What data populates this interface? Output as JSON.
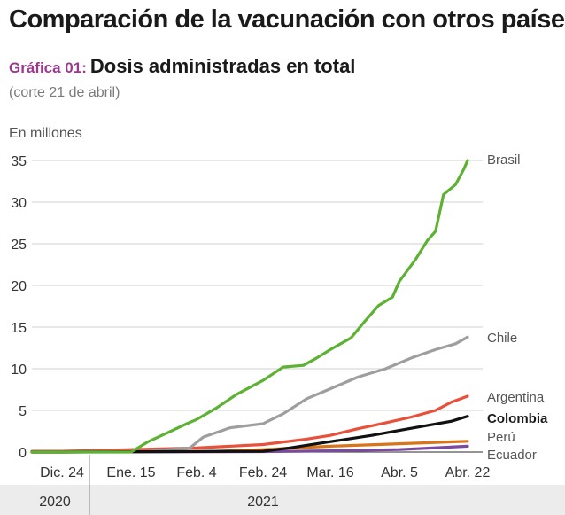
{
  "header": {
    "title": "Comparación de la vacunación con otros países",
    "subtitle_tag": "Gráfica 01:",
    "subtitle": "Dosis administradas en total",
    "note": "(corte 21 de abril)"
  },
  "colors": {
    "Brasil": "#5db233",
    "Chile": "#9e9e9e",
    "Argentina": "#e8503a",
    "Colombia": "#111111",
    "Perú": "#d8741a",
    "Ecuador": "#7b4a9e",
    "grid": "#d0d0d0",
    "axis_band": "#ececec"
  },
  "chart_data": {
    "type": "line",
    "ylabel": "En millones",
    "ylim": [
      0,
      35
    ],
    "yticks": [
      0,
      5,
      10,
      15,
      20,
      25,
      30,
      35
    ],
    "x_tick_labels": [
      "Dic. 24",
      "Ene. 15",
      "Feb. 4",
      "Feb. 24",
      "Mar. 16",
      "Abr. 5",
      "Abr. 22"
    ],
    "x_year_labels": [
      "2020",
      "2021"
    ],
    "grid": true,
    "series": [
      {
        "name": "Brasil",
        "x": [
          "2020-12-24",
          "2021-01-15",
          "2021-01-20",
          "2021-01-26",
          "2021-02-01",
          "2021-02-04",
          "2021-02-10",
          "2021-02-16",
          "2021-02-24",
          "2021-03-02",
          "2021-03-08",
          "2021-03-12",
          "2021-03-16",
          "2021-03-22",
          "2021-03-26",
          "2021-03-30",
          "2021-04-03",
          "2021-04-05",
          "2021-04-09",
          "2021-04-12",
          "2021-04-14",
          "2021-04-16",
          "2021-04-19",
          "2021-04-21",
          "2021-04-22"
        ],
        "values": [
          0,
          0,
          1.2,
          2.3,
          3.4,
          3.9,
          5.3,
          6.9,
          8.6,
          10.2,
          10.4,
          11.3,
          12.3,
          13.7,
          15.7,
          17.6,
          18.6,
          20.5,
          23.1,
          25.4,
          26.5,
          30.9,
          32.1,
          33.9,
          35.0
        ]
      },
      {
        "name": "Chile",
        "x": [
          "2020-12-24",
          "2021-01-20",
          "2021-02-02",
          "2021-02-06",
          "2021-02-14",
          "2021-02-24",
          "2021-03-02",
          "2021-03-09",
          "2021-03-16",
          "2021-03-24",
          "2021-04-01",
          "2021-04-08",
          "2021-04-14",
          "2021-04-19",
          "2021-04-22"
        ],
        "values": [
          0,
          0.1,
          0.5,
          1.8,
          2.9,
          3.4,
          4.6,
          6.4,
          7.6,
          9.0,
          10.0,
          11.3,
          12.3,
          13.0,
          13.8
        ]
      },
      {
        "name": "Argentina",
        "x": [
          "2020-12-24",
          "2021-01-15",
          "2021-02-04",
          "2021-02-24",
          "2021-03-08",
          "2021-03-16",
          "2021-03-24",
          "2021-04-01",
          "2021-04-08",
          "2021-04-14",
          "2021-04-18",
          "2021-04-22"
        ],
        "values": [
          0.1,
          0.3,
          0.5,
          0.9,
          1.5,
          2.0,
          2.8,
          3.5,
          4.2,
          5.0,
          6.0,
          6.7
        ]
      },
      {
        "name": "Colombia",
        "x": [
          "2020-12-24",
          "2021-02-24",
          "2021-03-04",
          "2021-03-12",
          "2021-03-20",
          "2021-03-28",
          "2021-04-05",
          "2021-04-12",
          "2021-04-18",
          "2021-04-22"
        ],
        "values": [
          0,
          0.1,
          0.5,
          1.0,
          1.5,
          2.0,
          2.6,
          3.2,
          3.7,
          4.3
        ]
      },
      {
        "name": "Perú",
        "x": [
          "2020-12-24",
          "2021-02-10",
          "2021-02-24",
          "2021-03-16",
          "2021-04-05",
          "2021-04-22"
        ],
        "values": [
          0,
          0.1,
          0.3,
          0.7,
          1.0,
          1.3
        ]
      },
      {
        "name": "Ecuador",
        "x": [
          "2020-12-24",
          "2021-02-24",
          "2021-03-16",
          "2021-04-05",
          "2021-04-22"
        ],
        "values": [
          0,
          0.05,
          0.15,
          0.3,
          0.7
        ]
      }
    ]
  }
}
